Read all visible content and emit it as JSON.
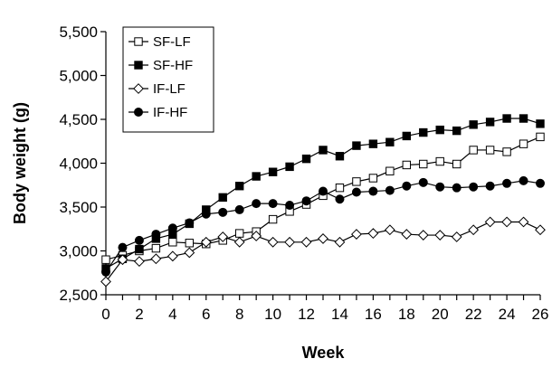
{
  "chart_data": {
    "type": "line",
    "title": "",
    "xlabel": "Week",
    "ylabel": "Body weight (g)",
    "xlim": [
      0,
      26
    ],
    "ylim": [
      2500,
      5500
    ],
    "x_ticks": [
      0,
      2,
      4,
      6,
      8,
      10,
      12,
      14,
      16,
      18,
      20,
      22,
      24,
      26
    ],
    "y_ticks": [
      2500,
      3000,
      3500,
      4000,
      4500,
      5000,
      5500
    ],
    "y_tick_labels": [
      "2,500",
      "3,000",
      "3,500",
      "4,000",
      "4,500",
      "5,000",
      "5,500"
    ],
    "grid": false,
    "legend_position": "top-left",
    "x": [
      0,
      1,
      2,
      3,
      4,
      5,
      6,
      7,
      8,
      9,
      10,
      11,
      12,
      13,
      14,
      15,
      16,
      17,
      18,
      19,
      20,
      21,
      22,
      23,
      24,
      25,
      26
    ],
    "series": [
      {
        "name": "SF-LF",
        "marker": "square-open",
        "values": [
          2900,
          2950,
          3000,
          3030,
          3100,
          3090,
          3080,
          3120,
          3200,
          3220,
          3360,
          3450,
          3530,
          3630,
          3720,
          3790,
          3830,
          3910,
          3980,
          3990,
          4020,
          3990,
          4150,
          4150,
          4130,
          4220,
          4300
        ]
      },
      {
        "name": "SF-HF",
        "marker": "square-filled",
        "values": [
          2800,
          2910,
          3020,
          3140,
          3190,
          3310,
          3470,
          3610,
          3740,
          3850,
          3900,
          3960,
          4050,
          4150,
          4080,
          4200,
          4220,
          4240,
          4310,
          4350,
          4380,
          4370,
          4440,
          4470,
          4510,
          4510,
          4450
        ]
      },
      {
        "name": "IF-LF",
        "marker": "diamond-open",
        "values": [
          2650,
          2900,
          2880,
          2910,
          2940,
          2980,
          3100,
          3160,
          3100,
          3170,
          3100,
          3100,
          3100,
          3140,
          3100,
          3190,
          3200,
          3240,
          3190,
          3180,
          3180,
          3160,
          3240,
          3330,
          3330,
          3330,
          3240
        ]
      },
      {
        "name": "IF-HF",
        "marker": "circle-filled",
        "values": [
          2760,
          3040,
          3120,
          3190,
          3260,
          3320,
          3420,
          3440,
          3470,
          3540,
          3540,
          3520,
          3570,
          3680,
          3590,
          3670,
          3680,
          3690,
          3740,
          3780,
          3730,
          3720,
          3730,
          3740,
          3770,
          3800,
          3770
        ]
      }
    ]
  }
}
